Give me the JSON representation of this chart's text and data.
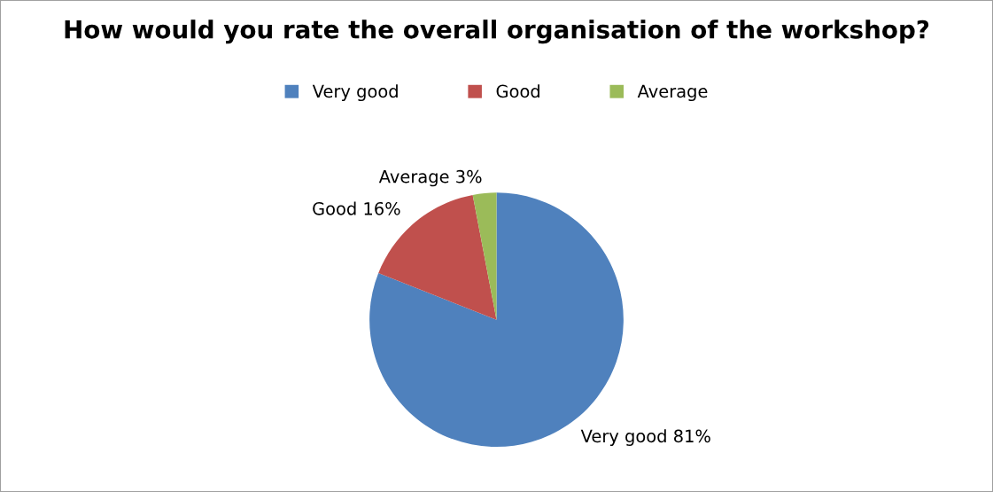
{
  "chart_data": {
    "type": "pie",
    "title": "How would you rate the overall organisation of the workshop?",
    "categories": [
      "Very good",
      "Good",
      "Average"
    ],
    "values": [
      81,
      16,
      3
    ],
    "colors": [
      "#4f81bd",
      "#c0504d",
      "#9bbb59"
    ],
    "value_labels": [
      "Very good 81%",
      "Good 16%",
      "Average 3%"
    ],
    "legend": "top"
  }
}
